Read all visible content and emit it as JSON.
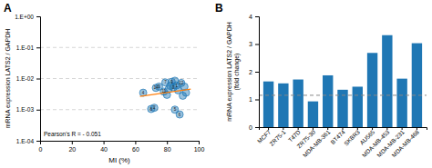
{
  "chart_data": [
    {
      "type": "scatter",
      "title": "A",
      "x_label": "MI (%)",
      "y_label": "mRNA expression LATS2 / GAPDH",
      "annotation": "Pearson's R = - 0.051",
      "log": "y",
      "grid": true,
      "xlim": [
        0,
        100
      ],
      "xticks": [
        0,
        20,
        40,
        60,
        80,
        100
      ],
      "ylim": [
        0.0001,
        1
      ],
      "yticks": [
        {
          "value": 1,
          "label": "1.E+00"
        },
        {
          "value": 0.1,
          "label": "1.E-01"
        },
        {
          "value": 0.01,
          "label": "1.E-02"
        },
        {
          "value": 0.001,
          "label": "1.E-03"
        },
        {
          "value": 0.0001,
          "label": "1.E-04"
        }
      ],
      "series": [
        {
          "type": "scatter",
          "marker": "circle",
          "x": [
            65,
            70,
            72,
            73,
            75,
            78,
            79,
            80,
            81,
            82,
            83,
            84,
            85,
            85,
            86,
            87,
            88,
            89,
            90,
            91,
            92
          ],
          "values": [
            0.0035,
            0.00105,
            0.00115,
            0.005,
            0.0055,
            0.0038,
            0.0075,
            0.003,
            0.0045,
            0.0058,
            0.0078,
            0.0052,
            0.0085,
            0.001,
            0.006,
            0.0042,
            0.0007,
            0.0072,
            0.0028,
            0.0055,
            0.0035
          ],
          "point_labels": [
            "4",
            "8",
            "2",
            "14",
            "3",
            "11",
            "7",
            null,
            null,
            null,
            "9",
            "0",
            null,
            "5",
            "1",
            null,
            "6",
            "12",
            null,
            null,
            null
          ]
        },
        {
          "type": "line",
          "line_style": "solid",
          "x": [
            63,
            95
          ],
          "values": [
            0.002664,
            0.004552
          ]
        }
      ]
    },
    {
      "type": "bar",
      "title": "B",
      "y_label": "mRNA expression LATS2 / GAPDH\n(fold change)",
      "grid": false,
      "categories": [
        "MCF7",
        "ZR75-1",
        "T47D",
        "ZR75-30",
        "MDA-MB-361",
        "BT474",
        "SKBR3",
        "AU565",
        "MDA-MB-453",
        "MDA-MB-231",
        "MDA-MB-468"
      ],
      "values": [
        1.65,
        1.58,
        1.72,
        0.93,
        1.87,
        1.35,
        1.46,
        2.68,
        3.32,
        1.75,
        3.03
      ],
      "ref_line": 1.15,
      "ylim": [
        0,
        4
      ],
      "yticks": [
        0,
        1,
        2,
        3,
        4
      ]
    }
  ]
}
